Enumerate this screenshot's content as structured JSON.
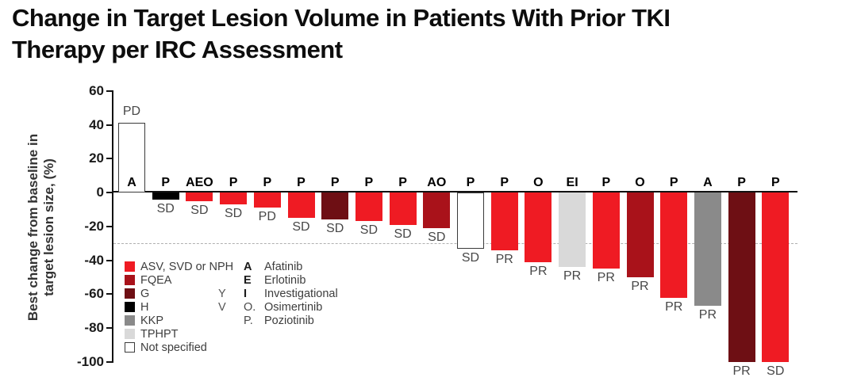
{
  "title": {
    "line1": "Change in Target Lesion Volume in Patients With Prior TKI",
    "line2": "Therapy per IRC Assessment"
  },
  "y_axis": {
    "label_line1": "Best change from baseline in",
    "label_line2": "target lesion size, (%)",
    "ticks": [
      60,
      40,
      20,
      0,
      -20,
      -40,
      -60,
      -80,
      -100
    ]
  },
  "colors": {
    "asv": "#EF1B23",
    "fqea": "#A9121A",
    "g": "#6E0F14",
    "h": "#000000",
    "kkp": "#8A8A8A",
    "tphpt": "#D9D9D9",
    "not_specified": "#FFFFFF",
    "axis": "#111111",
    "response_text": "#474747",
    "dashed_line": "#B0B0B0"
  },
  "chart_data": {
    "type": "bar",
    "title": "Change in Target Lesion Volume in Patients With Prior TKI Therapy per IRC Assessment",
    "ylabel": "Best change from baseline in target lesion size, (%)",
    "ylim": [
      -100,
      60
    ],
    "reference_line_y": -30,
    "grid": false,
    "bars": [
      {
        "value": 41,
        "drug_code": "A",
        "response": "PD",
        "color_key": "not_specified"
      },
      {
        "value": -4,
        "drug_code": "P",
        "response": "SD",
        "color_key": "h"
      },
      {
        "value": -5,
        "drug_code": "AEO",
        "response": "SD",
        "color_key": "asv"
      },
      {
        "value": -7,
        "drug_code": "P",
        "response": "SD",
        "color_key": "asv"
      },
      {
        "value": -9,
        "drug_code": "P",
        "response": "PD",
        "color_key": "asv"
      },
      {
        "value": -15,
        "drug_code": "P",
        "response": "SD",
        "color_key": "asv"
      },
      {
        "value": -16,
        "drug_code": "P",
        "response": "SD",
        "color_key": "g"
      },
      {
        "value": -17,
        "drug_code": "P",
        "response": "SD",
        "color_key": "asv"
      },
      {
        "value": -19,
        "drug_code": "P",
        "response": "SD",
        "color_key": "asv"
      },
      {
        "value": -21,
        "drug_code": "AO",
        "response": "SD",
        "color_key": "fqea"
      },
      {
        "value": -33,
        "drug_code": "P",
        "response": "SD",
        "color_key": "not_specified"
      },
      {
        "value": -34,
        "drug_code": "P",
        "response": "PR",
        "color_key": "asv"
      },
      {
        "value": -41,
        "drug_code": "O",
        "response": "PR",
        "color_key": "asv"
      },
      {
        "value": -44,
        "drug_code": "EI",
        "response": "PR",
        "color_key": "tphpt"
      },
      {
        "value": -45,
        "drug_code": "P",
        "response": "PR",
        "color_key": "asv"
      },
      {
        "value": -50,
        "drug_code": "O",
        "response": "PR",
        "color_key": "fqea"
      },
      {
        "value": -62,
        "drug_code": "P",
        "response": "PR",
        "color_key": "asv"
      },
      {
        "value": -67,
        "drug_code": "A",
        "response": "PR",
        "color_key": "kkp"
      },
      {
        "value": -100,
        "drug_code": "P",
        "response": "PR",
        "color_key": "g"
      },
      {
        "value": -100,
        "drug_code": "P",
        "response": "SD",
        "color_key": "asv"
      }
    ]
  },
  "legend": {
    "color_items": [
      {
        "key": "asv",
        "label": "ASV, SVD or NPH"
      },
      {
        "key": "fqea",
        "label": "FQEA"
      },
      {
        "key": "g",
        "label": "G"
      },
      {
        "key": "h",
        "label": "H"
      },
      {
        "key": "kkp",
        "label": "KKP"
      },
      {
        "key": "tphpt",
        "label": "TPHPT"
      },
      {
        "key": "not_specified",
        "label": "Not specified"
      }
    ],
    "mid_letters": [
      {
        "text": "Y",
        "row": 2
      },
      {
        "text": "V",
        "row": 3
      }
    ],
    "drug_items": [
      {
        "letter": "A",
        "bold": true,
        "name": "Afatinib"
      },
      {
        "letter": "E",
        "bold": true,
        "name": "Erlotinib"
      },
      {
        "letter": "I",
        "bold": true,
        "name": "Investigational"
      },
      {
        "letter": "O.",
        "bold": false,
        "name": "Osimertinib"
      },
      {
        "letter": "P.",
        "bold": false,
        "name": "Poziotinib"
      }
    ]
  }
}
